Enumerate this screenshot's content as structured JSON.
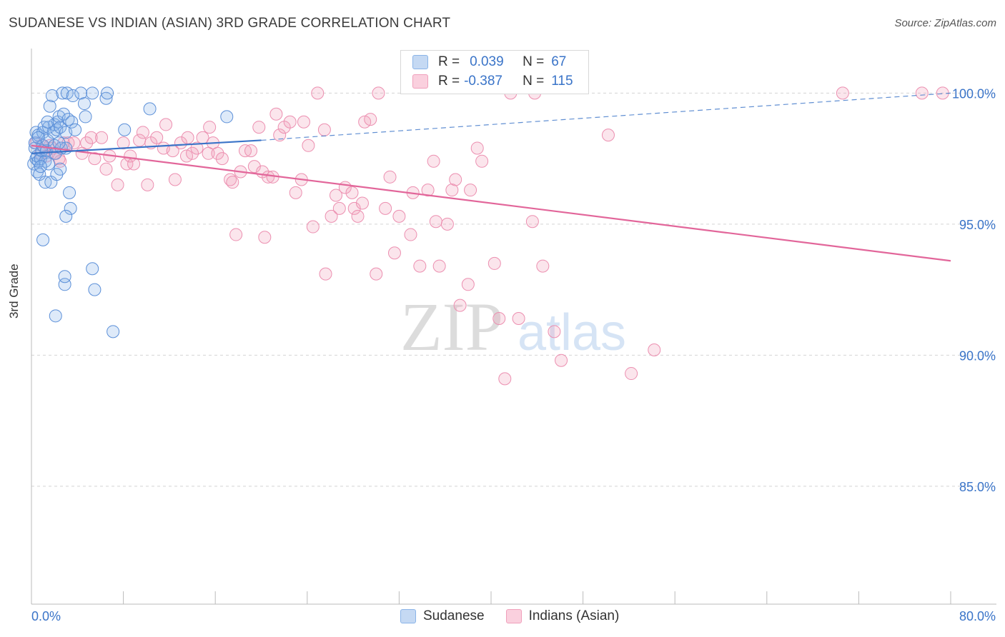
{
  "title": "SUDANESE VS INDIAN (ASIAN) 3RD GRADE CORRELATION CHART",
  "source": "Source: ZipAtlas.com",
  "watermark": {
    "zip": "ZIP",
    "atlas": "atlas"
  },
  "legend": {
    "r_label": "R =",
    "n_label": "N =",
    "entries": [
      {
        "r": "0.039",
        "n": "67",
        "color": "#8ab4e8",
        "fill": "#c5d9f3"
      },
      {
        "r": "-0.387",
        "n": "115",
        "color": "#f0a0bb",
        "fill": "#fad0de"
      }
    ]
  },
  "bottom_legend": [
    "Sudanese",
    "Indians (Asian)"
  ],
  "colors": {
    "sudanese": "#5b8fd8",
    "indian": "#ec8fb0",
    "sud_line": "#3a74c8",
    "ind_line": "#e2669a",
    "tick_label": "#3a74c8"
  },
  "chart_data": {
    "type": "scatter",
    "title": "SUDANESE VS INDIAN (ASIAN) 3RD GRADE CORRELATION CHART",
    "xlabel": "",
    "ylabel": "3rd Grade",
    "xlim": [
      0,
      80
    ],
    "ylim": [
      80.5,
      101.7
    ],
    "x_tick_labels": [
      "0.0%",
      "80.0%"
    ],
    "y_ticks": [
      85,
      90,
      95,
      100
    ],
    "y_tick_labels": [
      "85.0%",
      "90.0%",
      "95.0%",
      "100.0%"
    ],
    "grid": true,
    "series": [
      {
        "name": "Sudanese",
        "r": 0.039,
        "n": 67,
        "trend": {
          "x": [
            0,
            20
          ],
          "y": [
            97.7,
            98.2
          ],
          "dashed_to": [
            80,
            100.0
          ]
        },
        "points": [
          [
            0.2,
            97.3
          ],
          [
            0.3,
            97.9
          ],
          [
            0.3,
            98.1
          ],
          [
            0.4,
            97.5
          ],
          [
            0.4,
            98.5
          ],
          [
            0.5,
            97.0
          ],
          [
            0.5,
            97.6
          ],
          [
            0.6,
            97.4
          ],
          [
            0.6,
            98.4
          ],
          [
            0.7,
            96.9
          ],
          [
            0.8,
            97.5
          ],
          [
            0.9,
            97.8
          ],
          [
            1.0,
            98.0
          ],
          [
            1.0,
            98.5
          ],
          [
            1.1,
            98.7
          ],
          [
            1.2,
            97.4
          ],
          [
            1.2,
            96.6
          ],
          [
            1.3,
            97.8
          ],
          [
            1.4,
            98.2
          ],
          [
            1.5,
            97.3
          ],
          [
            1.5,
            98.7
          ],
          [
            1.6,
            99.5
          ],
          [
            1.7,
            96.6
          ],
          [
            1.8,
            99.9
          ],
          [
            1.9,
            98.5
          ],
          [
            2.0,
            98.0
          ],
          [
            2.0,
            98.8
          ],
          [
            2.1,
            97.7
          ],
          [
            2.2,
            96.9
          ],
          [
            2.2,
            98.6
          ],
          [
            2.3,
            98.9
          ],
          [
            2.4,
            99.1
          ],
          [
            2.5,
            97.1
          ],
          [
            2.5,
            98.7
          ],
          [
            2.6,
            97.9
          ],
          [
            2.7,
            100.0
          ],
          [
            2.8,
            99.2
          ],
          [
            3.0,
            98.5
          ],
          [
            3.0,
            97.9
          ],
          [
            3.1,
            100.0
          ],
          [
            3.2,
            99.0
          ],
          [
            3.3,
            96.2
          ],
          [
            3.4,
            95.6
          ],
          [
            3.5,
            98.9
          ],
          [
            3.6,
            99.9
          ],
          [
            3.8,
            98.6
          ],
          [
            4.3,
            100.0
          ],
          [
            4.6,
            99.6
          ],
          [
            4.7,
            99.1
          ],
          [
            5.3,
            100.0
          ],
          [
            6.5,
            99.8
          ],
          [
            6.6,
            100.0
          ],
          [
            8.1,
            98.6
          ],
          [
            10.3,
            99.4
          ],
          [
            17.0,
            99.1
          ],
          [
            1.0,
            94.4
          ],
          [
            2.9,
            92.7
          ],
          [
            2.9,
            93.0
          ],
          [
            5.3,
            93.3
          ],
          [
            5.5,
            92.5
          ],
          [
            2.1,
            91.5
          ],
          [
            7.1,
            90.9
          ],
          [
            3.0,
            95.3
          ],
          [
            0.6,
            98.3
          ],
          [
            1.4,
            98.9
          ],
          [
            0.8,
            97.2
          ],
          [
            2.4,
            98.1
          ]
        ]
      },
      {
        "name": "Indians (Asian)",
        "r": -0.387,
        "n": 115,
        "trend": {
          "x": [
            0,
            80
          ],
          "y": [
            98.0,
            93.6
          ]
        },
        "points": [
          [
            0.4,
            98.1
          ],
          [
            0.8,
            97.7
          ],
          [
            1.3,
            97.6
          ],
          [
            1.6,
            98.0
          ],
          [
            2.0,
            97.7
          ],
          [
            2.5,
            97.4
          ],
          [
            2.8,
            98.1
          ],
          [
            3.2,
            98.1
          ],
          [
            3.7,
            98.1
          ],
          [
            4.4,
            97.7
          ],
          [
            4.8,
            98.1
          ],
          [
            5.2,
            98.3
          ],
          [
            5.5,
            97.5
          ],
          [
            6.1,
            98.3
          ],
          [
            6.5,
            97.1
          ],
          [
            6.8,
            97.6
          ],
          [
            7.5,
            96.5
          ],
          [
            8.0,
            98.1
          ],
          [
            8.3,
            97.3
          ],
          [
            8.6,
            97.6
          ],
          [
            8.9,
            97.3
          ],
          [
            9.4,
            98.2
          ],
          [
            9.7,
            98.5
          ],
          [
            10.1,
            96.5
          ],
          [
            10.4,
            98.1
          ],
          [
            10.9,
            98.3
          ],
          [
            11.5,
            97.9
          ],
          [
            11.7,
            98.8
          ],
          [
            12.3,
            97.8
          ],
          [
            12.5,
            96.7
          ],
          [
            13.0,
            98.1
          ],
          [
            13.5,
            97.6
          ],
          [
            13.6,
            98.3
          ],
          [
            14.0,
            97.7
          ],
          [
            14.4,
            97.9
          ],
          [
            14.9,
            98.3
          ],
          [
            15.4,
            97.7
          ],
          [
            15.5,
            98.7
          ],
          [
            15.8,
            98.1
          ],
          [
            16.2,
            97.7
          ],
          [
            16.6,
            97.5
          ],
          [
            17.3,
            96.7
          ],
          [
            17.5,
            96.6
          ],
          [
            17.8,
            94.6
          ],
          [
            18.2,
            97.0
          ],
          [
            18.6,
            97.8
          ],
          [
            19.1,
            97.8
          ],
          [
            19.4,
            97.2
          ],
          [
            19.8,
            98.7
          ],
          [
            20.1,
            97.0
          ],
          [
            20.3,
            94.5
          ],
          [
            20.6,
            96.8
          ],
          [
            21.0,
            96.8
          ],
          [
            21.3,
            99.2
          ],
          [
            21.6,
            98.4
          ],
          [
            22.0,
            98.7
          ],
          [
            22.5,
            98.9
          ],
          [
            23.0,
            96.2
          ],
          [
            23.5,
            96.7
          ],
          [
            23.7,
            98.9
          ],
          [
            24.1,
            98.0
          ],
          [
            24.5,
            94.9
          ],
          [
            24.9,
            100.0
          ],
          [
            25.5,
            98.6
          ],
          [
            25.6,
            93.1
          ],
          [
            26.1,
            95.3
          ],
          [
            26.5,
            96.1
          ],
          [
            26.8,
            95.6
          ],
          [
            27.3,
            96.4
          ],
          [
            27.9,
            96.2
          ],
          [
            28.1,
            95.6
          ],
          [
            28.4,
            95.3
          ],
          [
            28.8,
            95.8
          ],
          [
            29.0,
            98.9
          ],
          [
            29.5,
            99.0
          ],
          [
            30.0,
            93.1
          ],
          [
            30.2,
            100.0
          ],
          [
            30.8,
            95.6
          ],
          [
            31.2,
            96.8
          ],
          [
            31.6,
            93.9
          ],
          [
            32.0,
            95.3
          ],
          [
            33.0,
            94.6
          ],
          [
            33.2,
            96.2
          ],
          [
            33.8,
            93.4
          ],
          [
            34.5,
            96.3
          ],
          [
            35.0,
            97.4
          ],
          [
            35.2,
            95.1
          ],
          [
            35.5,
            93.4
          ],
          [
            36.2,
            95.0
          ],
          [
            36.6,
            96.3
          ],
          [
            36.9,
            96.7
          ],
          [
            37.3,
            91.9
          ],
          [
            38.0,
            92.7
          ],
          [
            38.2,
            96.3
          ],
          [
            38.8,
            97.9
          ],
          [
            39.2,
            97.4
          ],
          [
            40.3,
            93.5
          ],
          [
            40.7,
            91.4
          ],
          [
            41.2,
            89.1
          ],
          [
            41.7,
            100.0
          ],
          [
            42.4,
            91.4
          ],
          [
            43.6,
            95.1
          ],
          [
            43.8,
            100.0
          ],
          [
            44.5,
            93.4
          ],
          [
            45.5,
            90.9
          ],
          [
            46.1,
            89.8
          ],
          [
            50.2,
            98.4
          ],
          [
            52.2,
            89.3
          ],
          [
            54.2,
            90.2
          ],
          [
            70.6,
            100.0
          ],
          [
            77.5,
            100.0
          ],
          [
            79.3,
            100.0
          ],
          [
            0.9,
            98.0
          ],
          [
            1.8,
            97.9
          ],
          [
            2.4,
            97.5
          ]
        ]
      }
    ]
  }
}
